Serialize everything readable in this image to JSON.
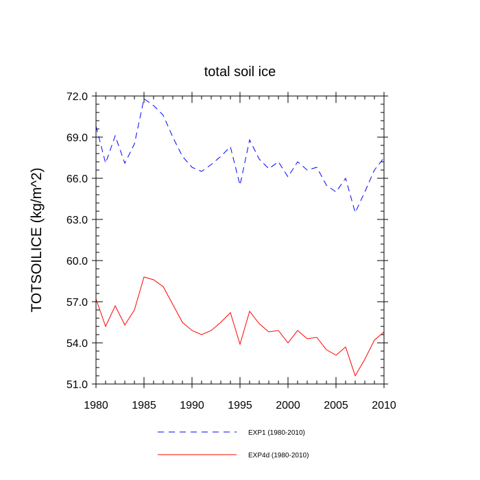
{
  "chart_data": {
    "type": "line",
    "title": "total soil ice",
    "xlabel": "",
    "ylabel": "TOTSOILICE  (kg/m^2)",
    "xlim": [
      1980,
      2010
    ],
    "ylim": [
      51.0,
      72.0
    ],
    "x_ticks": [
      1980,
      1985,
      1990,
      1995,
      2000,
      2005,
      2010
    ],
    "x_tick_labels": [
      "1980",
      "1985",
      "1990",
      "1995",
      "2000",
      "2005",
      "2010"
    ],
    "y_ticks": [
      51.0,
      54.0,
      57.0,
      60.0,
      63.0,
      66.0,
      69.0,
      72.0
    ],
    "y_tick_labels": [
      "51.0",
      "54.0",
      "57.0",
      "60.0",
      "63.0",
      "66.0",
      "69.0",
      "72.0"
    ],
    "x": [
      1980,
      1981,
      1982,
      1983,
      1984,
      1985,
      1986,
      1987,
      1988,
      1989,
      1990,
      1991,
      1992,
      1993,
      1994,
      1995,
      1996,
      1997,
      1998,
      1999,
      2000,
      2001,
      2002,
      2003,
      2004,
      2005,
      2006,
      2007,
      2008,
      2009,
      2010
    ],
    "series": [
      {
        "name": "EXP1 (1980-2010)",
        "color": "#0000ff",
        "style": "dashed",
        "values": [
          69.8,
          67.1,
          69.1,
          67.1,
          68.5,
          71.8,
          71.3,
          70.6,
          69.0,
          67.6,
          66.8,
          66.5,
          67.0,
          67.6,
          68.3,
          65.5,
          68.8,
          67.4,
          66.7,
          67.2,
          66.1,
          67.2,
          66.6,
          66.8,
          65.5,
          65.0,
          66.0,
          63.5,
          65.0,
          66.6,
          67.5
        ]
      },
      {
        "name": "EXP4d (1980-2010)",
        "color": "#ff0000",
        "style": "solid",
        "values": [
          57.2,
          55.2,
          56.7,
          55.3,
          56.4,
          58.8,
          58.6,
          58.1,
          56.8,
          55.5,
          54.9,
          54.6,
          54.9,
          55.5,
          56.2,
          53.9,
          56.3,
          55.4,
          54.8,
          54.9,
          54.0,
          54.9,
          54.3,
          54.4,
          53.5,
          53.1,
          53.7,
          51.6,
          52.8,
          54.2,
          54.8
        ]
      }
    ],
    "legend_position": "bottom-center"
  }
}
